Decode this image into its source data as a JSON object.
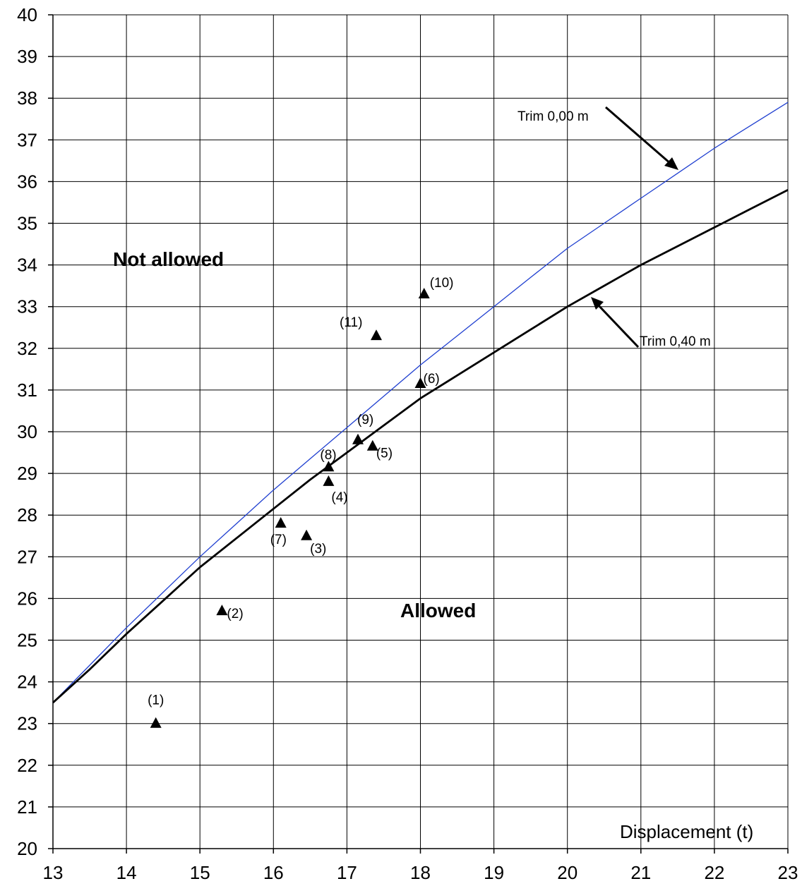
{
  "chart_data": {
    "type": "line",
    "title": "",
    "xlabel": "Displacement (t)",
    "ylabel": "",
    "xlim": [
      13,
      23
    ],
    "ylim": [
      20,
      40
    ],
    "x_ticks": [
      "13",
      "14",
      "15",
      "16",
      "17",
      "18",
      "19",
      "20",
      "21",
      "22",
      "23"
    ],
    "y_ticks": [
      "20",
      "21",
      "22",
      "23",
      "24",
      "25",
      "26",
      "27",
      "28",
      "29",
      "30",
      "31",
      "32",
      "33",
      "34",
      "35",
      "36",
      "37",
      "38",
      "39",
      "40"
    ],
    "grid": true,
    "series": [
      {
        "name": "Trim 0,00 m",
        "color": "#1f3fd0",
        "x": [
          13,
          13.5,
          14,
          14.5,
          15,
          15.5,
          16,
          16.5,
          17,
          17.5,
          18,
          18.5,
          19,
          19.5,
          20,
          20.5,
          21,
          21.5,
          22,
          22.5,
          23
        ],
        "y": [
          23.5,
          24.4,
          25.3,
          26.15,
          27.0,
          27.8,
          28.6,
          29.35,
          30.1,
          30.85,
          31.6,
          32.3,
          33.0,
          33.7,
          34.4,
          35.0,
          35.6,
          36.2,
          36.8,
          37.35,
          37.9
        ]
      },
      {
        "name": "Trim 0,40 m",
        "color": "#000000",
        "x": [
          13,
          13.5,
          14,
          14.5,
          15,
          15.5,
          16,
          16.5,
          17,
          17.5,
          18,
          18.5,
          19,
          19.5,
          20,
          20.5,
          21,
          21.5,
          22,
          22.5,
          23
        ],
        "y": [
          23.5,
          24.3,
          25.15,
          25.95,
          26.75,
          27.45,
          28.15,
          28.85,
          29.5,
          30.15,
          30.8,
          31.35,
          31.9,
          32.45,
          33.0,
          33.5,
          34.0,
          34.45,
          34.9,
          35.35,
          35.8
        ]
      }
    ],
    "points": [
      {
        "label": "(1)",
        "x": 14.4,
        "y": 23.0
      },
      {
        "label": "(2)",
        "x": 15.3,
        "y": 25.7
      },
      {
        "label": "(3)",
        "x": 16.45,
        "y": 27.5
      },
      {
        "label": "(4)",
        "x": 16.75,
        "y": 28.8
      },
      {
        "label": "(5)",
        "x": 17.35,
        "y": 29.65
      },
      {
        "label": "(6)",
        "x": 18.0,
        "y": 31.15
      },
      {
        "label": "(7)",
        "x": 16.1,
        "y": 27.8
      },
      {
        "label": "(8)",
        "x": 16.75,
        "y": 29.15
      },
      {
        "label": "(9)",
        "x": 17.15,
        "y": 29.8
      },
      {
        "label": "(10)",
        "x": 18.05,
        "y": 33.3
      },
      {
        "label": "(11)",
        "x": 17.4,
        "y": 32.3
      }
    ],
    "regions": {
      "upper": "Not allowed",
      "lower": "Allowed"
    },
    "annotations": [
      "Trim 0,00 m",
      "Trim 0,40 m"
    ]
  }
}
